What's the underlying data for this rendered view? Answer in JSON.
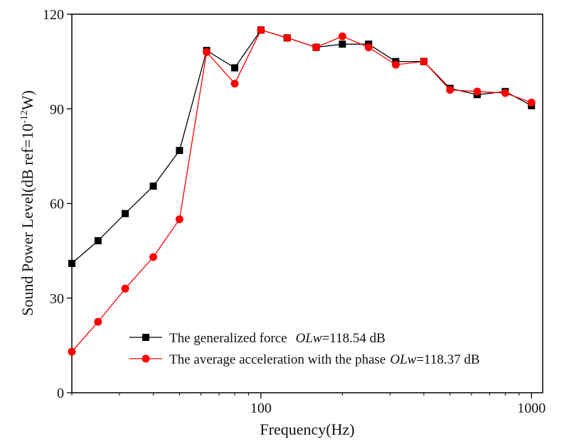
{
  "chart_data": {
    "type": "line",
    "title": "",
    "xlabel": "Frequency(Hz)",
    "ylabel": {
      "base": "Sound Power Level(dB ref=10",
      "sup": "-12",
      "tail": "W)"
    },
    "xscale": "log",
    "xlim": [
      20,
      1100
    ],
    "ylim": [
      0,
      120
    ],
    "xticks": [
      100,
      1000
    ],
    "xtick_labels": [
      "100",
      "1000"
    ],
    "yticks": [
      0,
      30,
      60,
      90,
      120
    ],
    "ytick_labels": [
      "0",
      "30",
      "60",
      "90",
      "120"
    ],
    "grid": false,
    "legend_position": "bottom-left",
    "x": [
      20,
      25,
      31.5,
      40,
      50,
      63,
      80,
      100,
      125,
      160,
      200,
      250,
      315,
      400,
      500,
      630,
      800,
      1000
    ],
    "series": [
      {
        "name": "The generalized force",
        "metric_label": "OLw",
        "metric_value": "=118.54 dB",
        "color": "#000000",
        "marker": "square",
        "values": [
          41,
          48.2,
          56.8,
          65.5,
          76.8,
          108.5,
          103,
          115,
          112.5,
          109.5,
          110.5,
          110.5,
          105,
          105,
          96.5,
          94.5,
          95.5,
          91
        ]
      },
      {
        "name": "The average acceleration with the phase",
        "metric_label": "OLw",
        "metric_value": "=118.37 dB",
        "color": "#ff0000",
        "marker": "circle",
        "values": [
          13,
          22.5,
          33,
          43,
          55,
          108,
          98,
          115,
          112.5,
          109.5,
          113,
          109.5,
          104,
          105,
          96,
          95.5,
          95,
          92
        ]
      }
    ]
  }
}
